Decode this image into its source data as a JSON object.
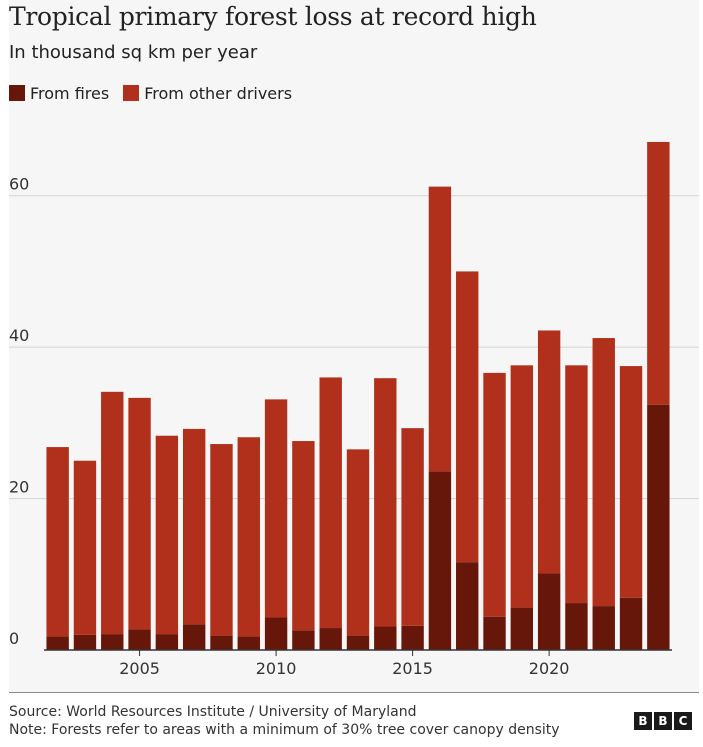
{
  "header": {
    "title": "Tropical primary forest loss at record high",
    "subtitle": "In thousand sq km per year"
  },
  "legend": [
    {
      "label": "From fires",
      "color": "#661709"
    },
    {
      "label": "From other drivers",
      "color": "#b0301c"
    }
  ],
  "chart_data": {
    "type": "bar",
    "stacked": true,
    "categories": [
      2002,
      2003,
      2004,
      2005,
      2006,
      2007,
      2008,
      2009,
      2010,
      2011,
      2012,
      2013,
      2014,
      2015,
      2016,
      2017,
      2018,
      2019,
      2020,
      2021,
      2022,
      2023,
      2024
    ],
    "series": [
      {
        "name": "From fires",
        "color": "#661709",
        "values": [
          1.8,
          2.0,
          2.1,
          2.7,
          2.1,
          3.4,
          1.9,
          1.8,
          4.3,
          2.6,
          2.9,
          1.9,
          3.1,
          3.2,
          23.6,
          11.6,
          4.4,
          5.6,
          10.1,
          6.2,
          5.8,
          6.9,
          32.4
        ]
      },
      {
        "name": "From other drivers",
        "color": "#b0301c",
        "values": [
          25.0,
          23.0,
          32.0,
          30.6,
          26.2,
          25.8,
          25.3,
          26.3,
          28.8,
          25.0,
          33.1,
          24.6,
          32.8,
          26.1,
          37.6,
          38.4,
          32.2,
          32.0,
          32.1,
          31.4,
          35.4,
          30.6,
          34.7
        ]
      }
    ],
    "y_ticks": [
      0,
      20,
      40,
      60
    ],
    "x_ticks": [
      2005,
      2010,
      2015,
      2020
    ],
    "ylim": [
      0,
      70
    ],
    "grid": true
  },
  "footer": {
    "source": "Source: World Resources Institute / University of Maryland",
    "note": "Note: Forests refer to areas with a minimum of 30% tree cover canopy density",
    "logo": [
      "B",
      "B",
      "C"
    ]
  }
}
